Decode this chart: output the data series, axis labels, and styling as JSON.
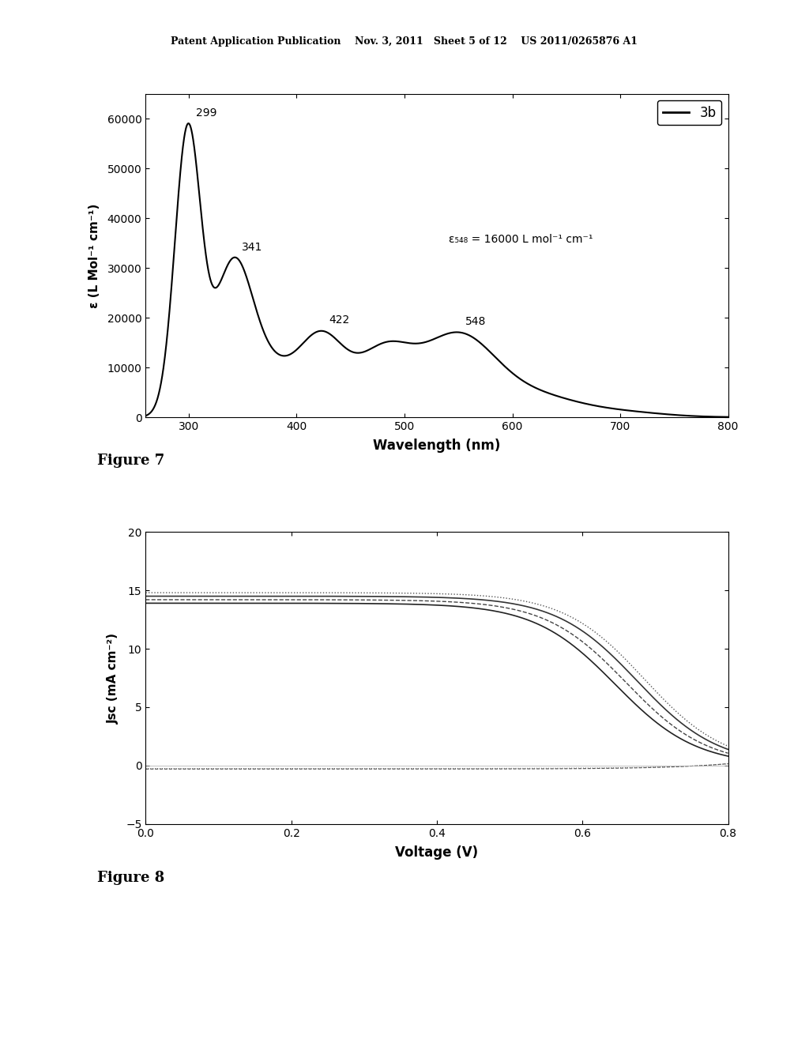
{
  "fig_width": 10.24,
  "fig_height": 13.2,
  "bg_color": "#ffffff",
  "header_text": "Patent Application Publication    Nov. 3, 2011   Sheet 5 of 12    US 2011/0265876 A1",
  "fig7_caption": "Figure 7",
  "fig8_caption": "Figure 8",
  "plot1": {
    "xlabel": "Wavelength (nm)",
    "ylabel": "ε (L Mol⁻¹ cm⁻¹)",
    "xlim": [
      260,
      800
    ],
    "ylim": [
      0,
      65000
    ],
    "xticks": [
      300,
      400,
      500,
      600,
      700,
      800
    ],
    "yticks": [
      0,
      10000,
      20000,
      30000,
      40000,
      50000,
      60000
    ],
    "legend_label": "3b",
    "annotation_text": "ε₅₄₈ = 16000 L mol⁻¹ cm⁻¹",
    "peaks": [
      {
        "x": 299,
        "label": "299"
      },
      {
        "x": 341,
        "label": "341"
      },
      {
        "x": 422,
        "label": "422"
      },
      {
        "x": 548,
        "label": "548"
      }
    ],
    "curve_color": "#000000",
    "curve_lw": 1.5
  },
  "plot2": {
    "xlabel": "Voltage (V)",
    "ylabel": "Jsc (mA cm⁻²)",
    "xlim": [
      0.0,
      0.8
    ],
    "ylim": [
      -5,
      20
    ],
    "xticks": [
      0.0,
      0.2,
      0.4,
      0.6,
      0.8
    ],
    "yticks": [
      -5,
      0,
      5,
      10,
      15,
      20
    ],
    "curve_color": "#000000",
    "curve_lw": 1.2
  }
}
